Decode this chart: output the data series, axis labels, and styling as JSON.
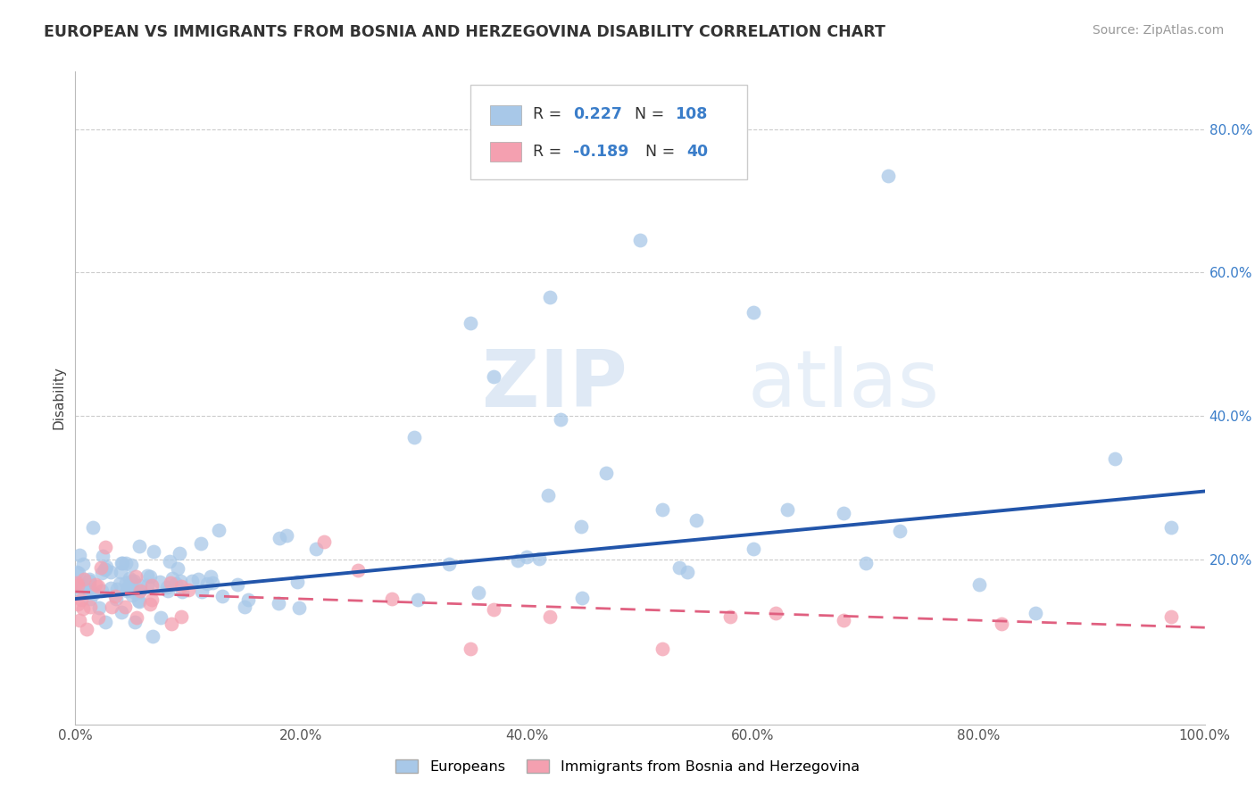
{
  "title": "EUROPEAN VS IMMIGRANTS FROM BOSNIA AND HERZEGOVINA DISABILITY CORRELATION CHART",
  "source": "Source: ZipAtlas.com",
  "ylabel": "Disability",
  "xlim": [
    0,
    1
  ],
  "ylim": [
    -0.03,
    0.88
  ],
  "xtick_labels": [
    "0.0%",
    "20.0%",
    "40.0%",
    "60.0%",
    "80.0%",
    "100.0%"
  ],
  "ytick_labels": [
    "20.0%",
    "40.0%",
    "60.0%",
    "80.0%"
  ],
  "ytick_vals": [
    0.2,
    0.4,
    0.6,
    0.8
  ],
  "color_blue": "#A8C8E8",
  "color_pink": "#F4A0B0",
  "trend_blue": "#2255AA",
  "trend_pink": "#E06080",
  "blue_trend_start_y": 0.145,
  "blue_trend_end_y": 0.295,
  "pink_trend_start_y": 0.155,
  "pink_trend_end_y": 0.105,
  "watermark_zip": "ZIP",
  "watermark_atlas": "atlas"
}
